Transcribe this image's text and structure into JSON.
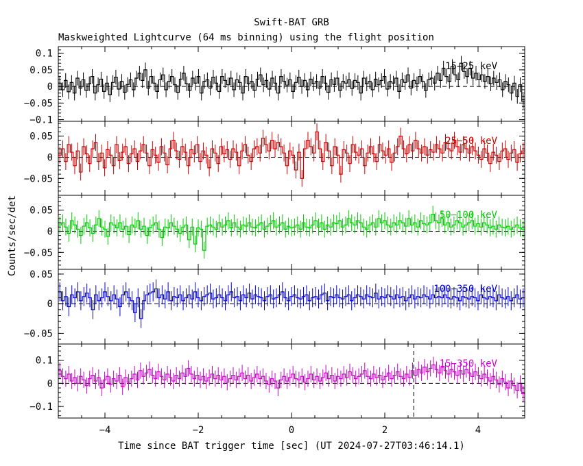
{
  "figure": {
    "title": "Swift-BAT GRB",
    "subtitle": "Maskweighted Lightcurve (64 ms binning) using the flight position",
    "xlabel": "Time since BAT trigger time [sec] (UT 2024-07-27T03:46:14.1)",
    "ylabel": "Counts/sec/det"
  },
  "chart_data": {
    "type": "line",
    "xlim": [
      -5,
      5
    ],
    "x_ticks": [
      -4,
      -2,
      0,
      2,
      4
    ],
    "x_tick_labels": [
      "−4",
      "−2",
      "0",
      "2",
      "4"
    ],
    "bin_width_s": 0.064,
    "marker_line_x": 2.62,
    "grid": false,
    "panels": [
      {
        "band": "15−25 keV",
        "color": "#000000",
        "ylim": [
          -0.105,
          0.12
        ],
        "y_ticks": [
          0.1,
          0.05,
          0,
          -0.05,
          -0.1
        ],
        "y_tick_labels": [
          "0.1",
          "0.05",
          "0",
          "−0.05",
          "−0.1"
        ],
        "errbar": 0.022,
        "values": [
          0.01,
          -0.01,
          0.018,
          -0.016,
          0.012,
          -0.02,
          0.025,
          -0.005,
          0.02,
          -0.012,
          0.008,
          0.03,
          -0.02,
          0.005,
          0.022,
          -0.015,
          0.01,
          -0.025,
          0.012,
          0.028,
          -0.008,
          0.015,
          -0.018,
          0.006,
          0.02,
          -0.01,
          0.025,
          0.04,
          0.018,
          0.05,
          -0.005,
          0.03,
          0.01,
          -0.015,
          0.02,
          0.035,
          -0.01,
          0.015,
          0.03,
          0.005,
          -0.018,
          0.022,
          0.04,
          0.008,
          -0.012,
          0.025,
          0.01,
          0.03,
          -0.02,
          0.015,
          0.02,
          -0.005,
          0.028,
          0.01,
          -0.015,
          0.03,
          0.018,
          0.005,
          0.025,
          -0.01,
          0.02,
          0.012,
          -0.02,
          0.03,
          0.008,
          0.015,
          -0.012,
          0.022,
          0.035,
          0.005,
          0.018,
          -0.008,
          0.025,
          0.01,
          -0.02,
          0.03,
          0.015,
          0.004,
          0.02,
          -0.015,
          0.012,
          0.028,
          0.0,
          0.018,
          -0.01,
          0.022,
          0.008,
          0.015,
          -0.005,
          0.03,
          0.01,
          -0.018,
          0.02,
          0.006,
          0.025,
          -0.012,
          0.015,
          0.01,
          0.02,
          -0.006,
          0.018,
          0.012,
          -0.02,
          0.025,
          0.008,
          0.015,
          -0.01,
          0.022,
          0.005,
          0.018,
          0.03,
          -0.008,
          0.015,
          0.01,
          0.025,
          -0.015,
          0.02,
          0.012,
          0.035,
          -0.005,
          0.018,
          0.008,
          0.03,
          0.015,
          -0.012,
          0.02,
          0.025,
          0.01,
          0.04,
          0.018,
          0.055,
          0.03,
          0.015,
          0.06,
          0.035,
          0.02,
          0.07,
          0.045,
          0.03,
          0.055,
          0.025,
          0.04,
          0.02,
          0.035,
          0.015,
          0.03,
          0.008,
          0.025,
          0.012,
          0.02,
          -0.01,
          0.015,
          0.005,
          -0.02,
          0.01,
          -0.03,
          0.005,
          -0.045
        ]
      },
      {
        "band": "25−50 keV",
        "color": "#cc0000",
        "ylim": [
          -0.09,
          0.085
        ],
        "y_ticks": [
          0.05,
          0,
          -0.05
        ],
        "y_tick_labels": [
          "0.05",
          "0",
          "−0.05"
        ],
        "errbar": 0.02,
        "values": [
          0.005,
          0.02,
          -0.01,
          0.03,
          0.012,
          -0.02,
          0.015,
          -0.035,
          0.025,
          0.008,
          -0.015,
          0.02,
          0.035,
          -0.01,
          0.01,
          -0.025,
          0.018,
          0.005,
          -0.02,
          0.03,
          -0.008,
          0.012,
          0.025,
          -0.015,
          0.008,
          0.02,
          -0.01,
          0.015,
          0.03,
          0.01,
          -0.02,
          0.018,
          0.005,
          -0.012,
          0.025,
          0.01,
          -0.018,
          0.02,
          0.04,
          0.015,
          -0.005,
          0.025,
          0.012,
          -0.02,
          0.018,
          0.008,
          0.03,
          -0.01,
          0.015,
          0.005,
          -0.025,
          0.02,
          0.01,
          -0.015,
          0.025,
          0.008,
          0.018,
          -0.005,
          0.02,
          0.012,
          -0.02,
          0.015,
          0.03,
          0.005,
          -0.01,
          0.02,
          0.025,
          0.01,
          0.045,
          0.03,
          0.015,
          0.04,
          0.02,
          0.035,
          0.025,
          0.01,
          -0.02,
          0.015,
          0.005,
          -0.03,
          0.012,
          -0.05,
          0.02,
          0.04,
          0.025,
          0.01,
          0.06,
          0.02,
          -0.01,
          0.035,
          0.015,
          -0.02,
          0.025,
          0.005,
          -0.04,
          0.018,
          0.01,
          -0.015,
          0.03,
          0.012,
          0.005,
          0.02,
          -0.02,
          0.01,
          0.025,
          0.008,
          -0.01,
          0.03,
          0.015,
          0.005,
          0.02,
          -0.012,
          0.01,
          0.025,
          0.05,
          0.02,
          0.008,
          0.03,
          0.015,
          0.04,
          0.02,
          0.01,
          0.025,
          0.005,
          0.018,
          0.012,
          0.03,
          0.02,
          0.01,
          0.035,
          0.02,
          0.015,
          0.04,
          0.025,
          0.012,
          0.03,
          0.02,
          0.01,
          0.025,
          0.015,
          0.005,
          -0.005,
          0.02,
          0.01,
          -0.015,
          0.012,
          0.005,
          -0.01,
          0.015,
          0.02,
          -0.005,
          0.01,
          0.018,
          -0.012,
          0.008,
          0.015
        ]
      },
      {
        "band": "50−100 keV",
        "color": "#00cc00",
        "ylim": [
          -0.09,
          0.085
        ],
        "y_ticks": [
          0.05,
          0,
          -0.05
        ],
        "y_tick_labels": [
          "0.05",
          "0",
          "−0.05"
        ],
        "errbar": 0.02,
        "values": [
          0.015,
          0.02,
          0.01,
          -0.005,
          0.025,
          0.015,
          0.005,
          -0.01,
          0.012,
          0.02,
          0.008,
          -0.005,
          0.015,
          0.03,
          0.01,
          0.005,
          -0.012,
          0.02,
          0.015,
          0.008,
          0.02,
          0.005,
          0.012,
          -0.008,
          0.015,
          0.01,
          0.025,
          0.005,
          0.012,
          -0.01,
          0.008,
          0.015,
          0.02,
          0.005,
          -0.015,
          0.01,
          0.008,
          0.02,
          0.012,
          0.005,
          -0.005,
          0.01,
          0.015,
          -0.02,
          0.01,
          -0.03,
          0.008,
          0.005,
          -0.045,
          0.012,
          0.015,
          0.01,
          0.005,
          0.02,
          0.01,
          0.015,
          0.025,
          0.008,
          0.02,
          0.01,
          0.005,
          0.015,
          0.012,
          0.02,
          0.01,
          0.008,
          0.015,
          0.02,
          0.005,
          0.012,
          0.018,
          0.025,
          0.01,
          0.015,
          0.02,
          0.005,
          0.012,
          0.008,
          0.01,
          0.015,
          0.005,
          0.02,
          0.01,
          0.008,
          0.015,
          0.025,
          0.01,
          0.02,
          0.005,
          0.015,
          0.01,
          0.02,
          0.018,
          0.025,
          0.01,
          0.015,
          0.03,
          0.02,
          0.015,
          0.025,
          0.02,
          0.01,
          0.005,
          0.015,
          0.02,
          0.01,
          0.03,
          0.02,
          0.025,
          0.015,
          0.01,
          0.02,
          0.015,
          0.025,
          0.02,
          0.012,
          0.03,
          0.015,
          0.02,
          0.01,
          0.025,
          0.018,
          0.015,
          0.02,
          0.04,
          0.025,
          0.02,
          0.03,
          0.015,
          0.02,
          0.01,
          0.015,
          0.025,
          0.02,
          0.01,
          0.015,
          0.02,
          0.025,
          0.012,
          0.018,
          0.01,
          0.02,
          0.015,
          0.008,
          0.012,
          0.005,
          0.015,
          0.01,
          0.008,
          0.012,
          0.005,
          0.01,
          0.015,
          0.008,
          0.005
        ]
      },
      {
        "band": "100−350 keV",
        "color": "#0000cc",
        "ylim": [
          -0.068,
          0.058
        ],
        "y_ticks": [
          0.05,
          0,
          -0.05
        ],
        "y_tick_labels": [
          "0.05",
          "0",
          "−0.05"
        ],
        "errbar": 0.016,
        "values": [
          0.02,
          0.005,
          0.012,
          -0.005,
          0.015,
          0.01,
          0.02,
          0.005,
          0.012,
          0.018,
          0.01,
          -0.01,
          0.015,
          0.005,
          0.01,
          0.02,
          0.012,
          0.005,
          0.015,
          0.008,
          -0.005,
          0.015,
          0.02,
          0.01,
          0.005,
          -0.015,
          0.01,
          -0.025,
          0.005,
          0.015,
          0.018,
          0.02,
          0.025,
          0.01,
          0.015,
          0.008,
          0.02,
          0.005,
          0.012,
          0.01,
          0.015,
          0.005,
          0.01,
          0.015,
          0.008,
          0.02,
          0.01,
          0.005,
          0.012,
          0.015,
          0.018,
          0.008,
          0.01,
          0.015,
          0.01,
          0.005,
          0.015,
          0.02,
          0.01,
          0.012,
          0.005,
          0.015,
          0.01,
          0.018,
          0.008,
          0.015,
          0.012,
          0.01,
          0.005,
          0.012,
          0.015,
          0.008,
          0.01,
          0.015,
          0.02,
          0.01,
          0.005,
          0.012,
          0.015,
          0.01,
          0.008,
          0.012,
          0.015,
          0.005,
          0.01,
          0.012,
          0.008,
          0.015,
          0.018,
          0.005,
          0.012,
          0.01,
          0.015,
          0.01,
          0.008,
          0.012,
          0.015,
          0.005,
          0.01,
          0.015,
          0.012,
          0.008,
          0.015,
          0.012,
          0.01,
          0.018,
          0.008,
          0.012,
          0.01,
          0.015,
          0.012,
          0.008,
          0.015,
          0.01,
          0.012,
          0.005,
          0.01,
          0.015,
          0.008,
          0.012,
          0.01,
          0.015,
          0.012,
          0.008,
          0.015,
          0.01,
          0.012,
          0.01,
          0.015,
          0.01,
          0.008,
          0.012,
          0.01,
          0.005,
          0.012,
          0.01,
          0.008,
          0.012,
          0.01,
          0.005,
          0.015,
          0.01,
          0.008,
          0.012,
          0.01,
          0.005,
          0.015,
          0.01,
          0.008,
          0.012,
          0.005,
          0.01,
          0.015,
          0.008,
          0.01
        ]
      },
      {
        "band": "15−350 keV",
        "color": "#cc00cc",
        "ylim": [
          -0.15,
          0.17
        ],
        "y_ticks": [
          0.1,
          0,
          -0.1
        ],
        "y_tick_labels": [
          "0.1",
          "0",
          "−0.1"
        ],
        "errbar": 0.035,
        "values": [
          0.055,
          0.03,
          0.02,
          0.04,
          0.01,
          0.025,
          0.0,
          0.03,
          0.015,
          -0.01,
          0.02,
          0.035,
          0.01,
          0.025,
          -0.02,
          0.015,
          0.03,
          -0.005,
          0.02,
          0.01,
          0.035,
          -0.015,
          0.025,
          0.005,
          0.02,
          0.04,
          0.015,
          0.055,
          0.03,
          0.045,
          0.06,
          0.035,
          0.02,
          0.05,
          0.03,
          0.015,
          0.04,
          0.025,
          0.01,
          0.035,
          0.02,
          0.045,
          0.03,
          0.065,
          0.04,
          0.02,
          0.035,
          0.015,
          0.03,
          0.01,
          0.025,
          0.04,
          0.02,
          0.035,
          0.015,
          0.03,
          0.005,
          0.02,
          0.035,
          0.015,
          0.03,
          0.045,
          0.02,
          0.035,
          0.01,
          0.025,
          0.04,
          0.02,
          0.03,
          0.01,
          -0.005,
          0.02,
          0.01,
          -0.02,
          0.015,
          0.03,
          0.01,
          0.025,
          0.04,
          0.02,
          0.015,
          0.03,
          0.005,
          0.02,
          0.04,
          0.015,
          0.03,
          0.01,
          0.025,
          0.045,
          0.02,
          0.035,
          0.01,
          0.03,
          0.02,
          0.04,
          0.025,
          0.05,
          0.035,
          0.02,
          0.03,
          0.04,
          0.055,
          0.03,
          0.02,
          0.04,
          0.025,
          0.035,
          0.015,
          0.03,
          0.045,
          0.02,
          0.035,
          0.05,
          0.03,
          0.02,
          0.04,
          0.025,
          0.055,
          0.035,
          0.06,
          0.045,
          0.07,
          0.05,
          0.065,
          0.08,
          0.06,
          0.045,
          0.07,
          0.055,
          0.04,
          0.06,
          0.05,
          0.035,
          0.055,
          0.04,
          0.06,
          0.045,
          0.03,
          0.05,
          0.035,
          0.02,
          0.04,
          0.025,
          0.01,
          0.03,
          0.015,
          -0.005,
          0.02,
          0.005,
          -0.02,
          0.01,
          -0.01,
          -0.03,
          0.0,
          -0.045
        ]
      }
    ]
  }
}
